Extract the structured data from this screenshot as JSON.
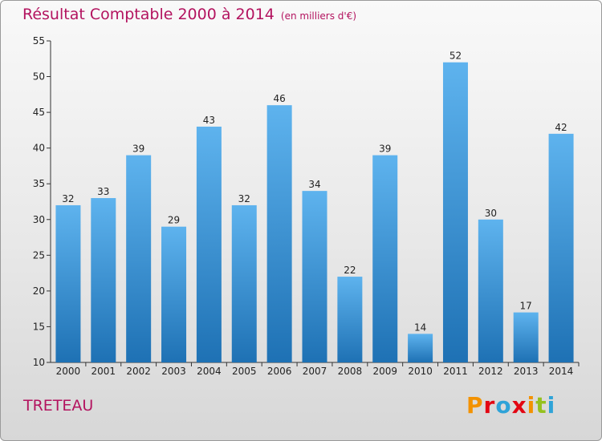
{
  "header": {
    "title": "Résultat Comptable 2000 à 2014",
    "subtitle": "(en milliers d'€)"
  },
  "footer": {
    "commune": "TRETEAU",
    "logo_text": "Proxiti"
  },
  "colors": {
    "title": "#b3135f",
    "bar_top": "#5eb3ee",
    "bar_bottom": "#1e71b4",
    "logo": [
      "#f39200",
      "#e30613",
      "#2fa3d8",
      "#e30613",
      "#f39200",
      "#95c11f",
      "#2fa3d8"
    ]
  },
  "chart_data": {
    "type": "bar",
    "categories": [
      "2000",
      "2001",
      "2002",
      "2003",
      "2004",
      "2005",
      "2006",
      "2007",
      "2008",
      "2009",
      "2010",
      "2011",
      "2012",
      "2013",
      "2014"
    ],
    "values": [
      32,
      33,
      39,
      29,
      43,
      32,
      46,
      34,
      22,
      39,
      14,
      52,
      30,
      17,
      42
    ],
    "ylim": [
      10,
      55
    ],
    "yticks": [
      10,
      15,
      20,
      25,
      30,
      35,
      40,
      45,
      50,
      55
    ],
    "grid": false,
    "data_labels": true
  }
}
